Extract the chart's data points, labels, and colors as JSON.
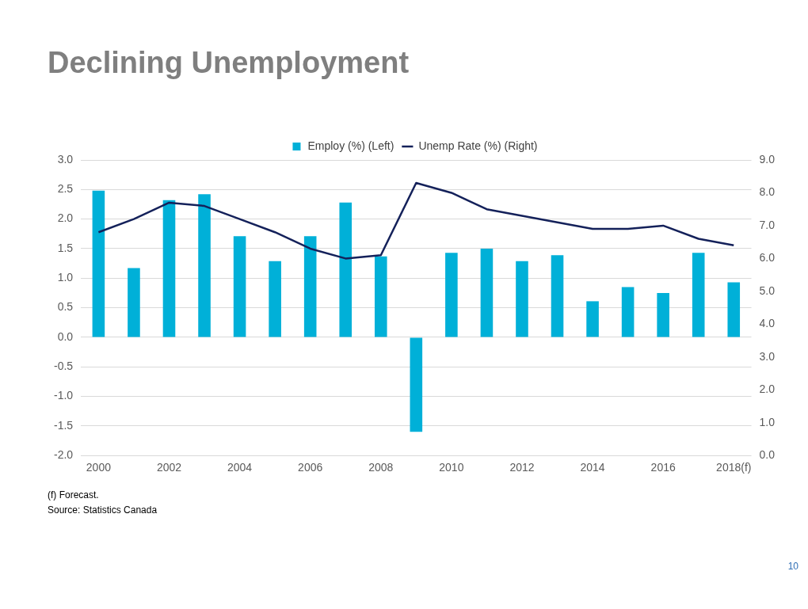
{
  "chart_data": {
    "type": "bar",
    "title": "Declining Unemployment",
    "categories": [
      "2000",
      null,
      "2002",
      null,
      "2004",
      null,
      "2006",
      null,
      "2008",
      null,
      "2010",
      null,
      "2012",
      null,
      "2014",
      null,
      "2016",
      null,
      "2018(f)"
    ],
    "series": [
      {
        "name": "Employ (%) (Left)",
        "color": "#00b0d8",
        "values": [
          2.48,
          1.17,
          2.32,
          2.42,
          1.71,
          1.29,
          1.71,
          2.28,
          1.37,
          -1.6,
          1.43,
          1.5,
          1.29,
          1.39,
          0.61,
          0.85,
          0.75,
          1.43,
          0.93
        ]
      },
      {
        "name": "Unemp Rate (%) (Right)",
        "type": "line",
        "axis": "y2",
        "color": "#14215a",
        "values": [
          6.8,
          7.2,
          7.7,
          7.6,
          7.2,
          6.8,
          6.3,
          6.0,
          6.1,
          8.3,
          8.0,
          7.5,
          7.3,
          7.1,
          6.9,
          6.9,
          7.0,
          6.6,
          6.4
        ]
      }
    ],
    "ylim": [
      -2,
      3
    ],
    "yticks": [
      {
        "value": -2,
        "label": "-2.0"
      },
      {
        "value": -1.5,
        "label": "-1.5"
      },
      {
        "value": -1,
        "label": "-1.0"
      },
      {
        "value": -0.5,
        "label": "-0.5"
      },
      {
        "value": 0,
        "label": "0.0"
      },
      {
        "value": 0.5,
        "label": "0.5"
      },
      {
        "value": 1,
        "label": "1.0"
      },
      {
        "value": 1.5,
        "label": "1.5"
      },
      {
        "value": 2,
        "label": "2.0"
      },
      {
        "value": 2.5,
        "label": "2.5"
      },
      {
        "value": 3,
        "label": "3.0"
      }
    ],
    "y2lim": [
      0,
      9
    ],
    "y2ticks": [
      {
        "value": 0,
        "label": "0.0"
      },
      {
        "value": 1,
        "label": "1.0"
      },
      {
        "value": 2,
        "label": "2.0"
      },
      {
        "value": 3,
        "label": "3.0"
      },
      {
        "value": 4,
        "label": "4.0"
      },
      {
        "value": 5,
        "label": "5.0"
      },
      {
        "value": 6,
        "label": "6.0"
      },
      {
        "value": 7,
        "label": "7.0"
      },
      {
        "value": 8,
        "label": "8.0"
      },
      {
        "value": 9,
        "label": "9.0"
      }
    ],
    "grid": "y",
    "legend": "top",
    "marker": "none",
    "line_style": "solid",
    "annotations": [
      "(f) Forecast.",
      "Source: Statistics Canada",
      "10"
    ]
  }
}
